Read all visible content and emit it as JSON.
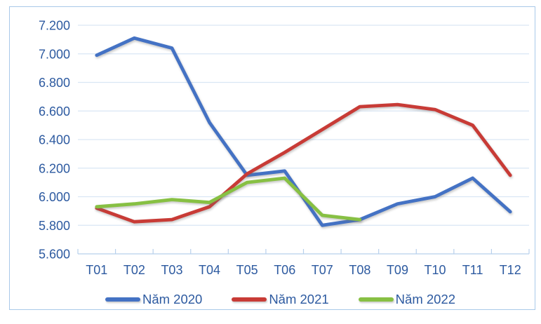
{
  "chart_data": {
    "type": "line",
    "title": "",
    "xlabel": "",
    "ylabel": "",
    "x": [
      "T01",
      "T02",
      "T03",
      "T04",
      "T05",
      "T06",
      "T07",
      "T08",
      "T09",
      "T10",
      "T11",
      "T12"
    ],
    "series": [
      {
        "name": "Năm 2020",
        "color": "#4472c4",
        "values": [
          6990,
          7110,
          7040,
          6520,
          6150,
          6180,
          5800,
          5840,
          5950,
          6000,
          6130,
          5895
        ]
      },
      {
        "name": "Năm 2021",
        "color": "#c83b36",
        "values": [
          5920,
          5825,
          5840,
          5930,
          6160,
          6310,
          6470,
          6630,
          6645,
          6610,
          6500,
          6150
        ]
      },
      {
        "name": "Năm 2022",
        "color": "#87c043",
        "values": [
          5930,
          5950,
          5980,
          5960,
          6100,
          6130,
          5870,
          5840,
          null,
          null,
          null,
          null
        ]
      }
    ],
    "ylim": [
      5600,
      7200
    ],
    "ytick_step": 200,
    "ytick_labels": [
      "5.600",
      "5.800",
      "6.000",
      "6.200",
      "6.400",
      "6.600",
      "6.800",
      "7.000",
      "7.200"
    ],
    "grid": true,
    "legend_position": "bottom"
  },
  "colors": {
    "axis_text": "#2d5aa0",
    "gridline": "#d9e6f4",
    "axis_line": "#b7d0ec",
    "frame_border": "#a9c9e9",
    "background": "#ffffff"
  }
}
